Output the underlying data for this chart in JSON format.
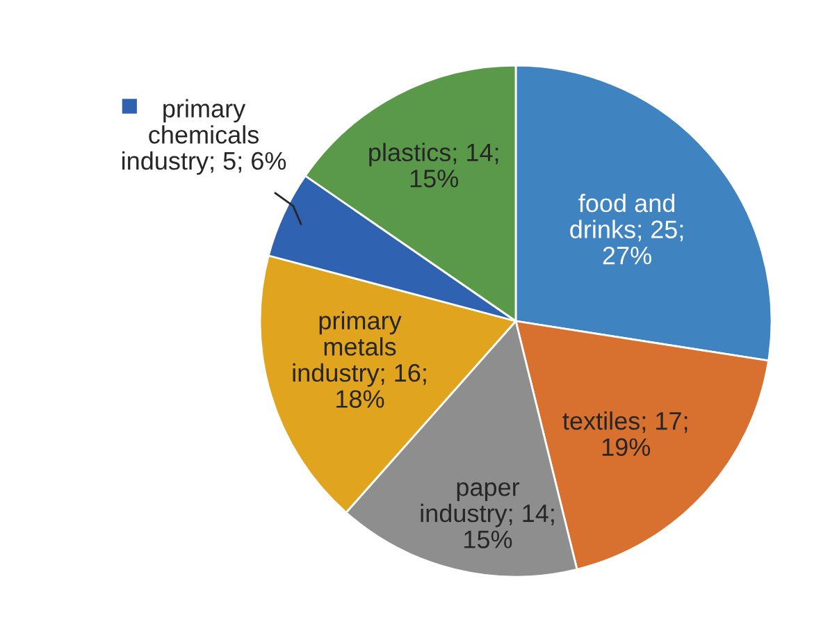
{
  "chart_data": {
    "type": "pie",
    "categories": [
      "food and drinks",
      "textiles",
      "paper industry",
      "primary metals industry",
      "primary chemicals industry",
      "plastics"
    ],
    "values": [
      25,
      17,
      14,
      16,
      5,
      14
    ],
    "value_labels": [
      "25; 27%",
      "17; 19%",
      "14; 15%",
      "16; 18%",
      "5; 6%",
      "14; 15%"
    ],
    "colors": [
      "#3f83c0",
      "#d8702f",
      "#8e8e8e",
      "#e0a41e",
      "#2f62b0",
      "#5a994a"
    ],
    "legend": "top left"
  }
}
